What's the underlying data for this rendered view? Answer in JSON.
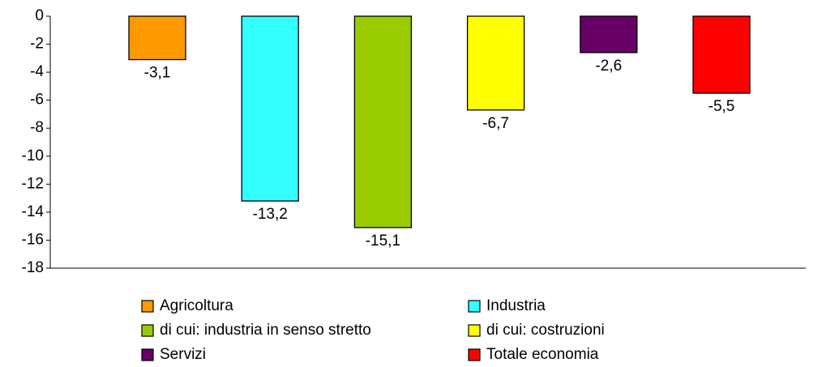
{
  "chart_data": {
    "type": "bar",
    "categories": [
      "Agricoltura",
      "Industria",
      "di cui: industria in senso stretto",
      "di cui: costruzioni",
      "Servizi",
      "Totale economia"
    ],
    "values": [
      -3.1,
      -13.2,
      -15.1,
      -6.7,
      -2.6,
      -5.5
    ],
    "value_labels": [
      "-3,1",
      "-13,2",
      "-15,1",
      "-6,7",
      "-2,6",
      "-5,5"
    ],
    "colors": [
      "#ff9900",
      "#33ffff",
      "#99cc00",
      "#ffff00",
      "#660066",
      "#ff0000"
    ],
    "ylim": [
      -18,
      0
    ],
    "yticks": [
      0,
      -2,
      -4,
      -6,
      -8,
      -10,
      -12,
      -14,
      -16,
      -18
    ],
    "legend": "bottom"
  }
}
